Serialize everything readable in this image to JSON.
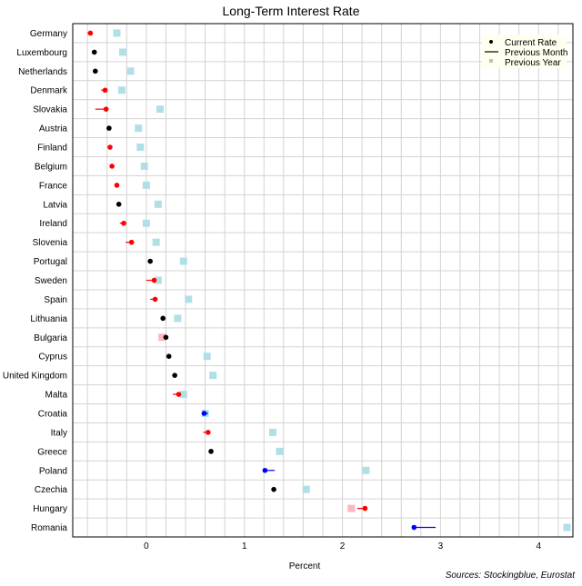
{
  "chart_data": {
    "type": "scatter",
    "title": "Long-Term Interest Rate",
    "xlabel": "Percent",
    "ylabel": "",
    "source": "Sources: Stockingblue, Eurostat",
    "xlim": [
      -0.75,
      4.35
    ],
    "xticks": [
      0,
      1,
      2,
      3,
      4
    ],
    "grid": true,
    "legend_position": "top-right",
    "legend": {
      "current": "Current Rate",
      "month": "Previous Month",
      "year": "Previous Year"
    },
    "colors": {
      "up": "#ff0000",
      "down": "#0000ff",
      "flat": "#000000",
      "year_lower": "#b0e0e6",
      "year_higher": "#ffb6c1",
      "grid": "#d3d3d3",
      "frame": "#000000"
    },
    "countries": [
      "Germany",
      "Luxembourg",
      "Netherlands",
      "Denmark",
      "Slovakia",
      "Austria",
      "Finland",
      "Belgium",
      "France",
      "Latvia",
      "Ireland",
      "Slovenia",
      "Portugal",
      "Sweden",
      "Spain",
      "Lithuania",
      "Bulgaria",
      "Cyprus",
      "United Kingdom",
      "Malta",
      "Croatia",
      "Italy",
      "Greece",
      "Poland",
      "Czechia",
      "Hungary",
      "Romania"
    ],
    "series": [
      {
        "name": "Current Rate",
        "values": [
          -0.57,
          -0.53,
          -0.52,
          -0.42,
          -0.41,
          -0.38,
          -0.37,
          -0.35,
          -0.3,
          -0.28,
          -0.23,
          -0.15,
          0.04,
          0.08,
          0.09,
          0.17,
          0.2,
          0.23,
          0.29,
          0.33,
          0.59,
          0.63,
          0.66,
          1.21,
          1.3,
          2.23,
          2.73
        ]
      },
      {
        "name": "Previous Month",
        "values": [
          -0.6,
          -0.53,
          -0.52,
          -0.46,
          -0.52,
          -0.38,
          -0.38,
          -0.36,
          -0.32,
          -0.28,
          -0.27,
          -0.21,
          0.04,
          0.0,
          0.04,
          0.17,
          0.2,
          0.23,
          0.29,
          0.27,
          0.63,
          0.58,
          0.66,
          1.31,
          1.3,
          2.15,
          2.95
        ]
      },
      {
        "name": "Previous Year",
        "values": [
          -0.3,
          -0.24,
          -0.16,
          -0.25,
          0.14,
          -0.08,
          -0.06,
          -0.02,
          0.0,
          0.12,
          0.0,
          0.1,
          0.38,
          0.12,
          0.43,
          0.32,
          0.16,
          0.62,
          0.68,
          0.38,
          0.6,
          1.29,
          1.36,
          2.24,
          1.63,
          2.09,
          4.29
        ]
      }
    ]
  }
}
